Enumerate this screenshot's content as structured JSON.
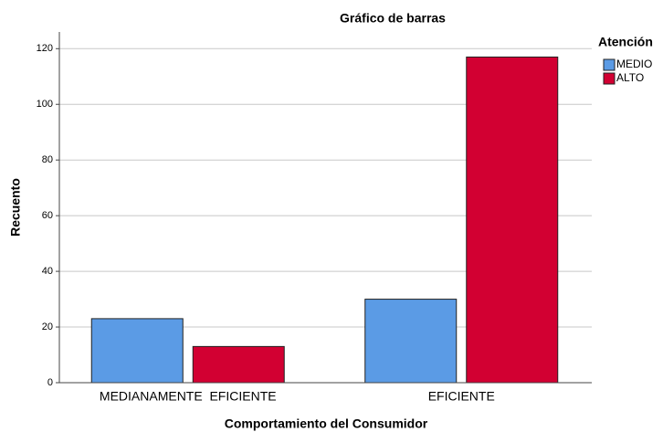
{
  "chart_data": {
    "type": "bar",
    "title": "Gráfico de barras",
    "xlabel": "Comportamiento del Consumidor",
    "ylabel": "Recuento",
    "categories": [
      "MEDIANAMENTE  EFICIENTE",
      "EFICIENTE"
    ],
    "legend_title": "Atención",
    "series": [
      {
        "name": "MEDIO",
        "color": "#5b9be5",
        "values": [
          23,
          30
        ]
      },
      {
        "name": "ALTO",
        "color": "#d20032",
        "values": [
          13,
          117
        ]
      }
    ],
    "ylim": [
      0,
      126
    ],
    "yticks": [
      0,
      20,
      40,
      60,
      80,
      100,
      120
    ],
    "grid": true,
    "legend": "right"
  }
}
